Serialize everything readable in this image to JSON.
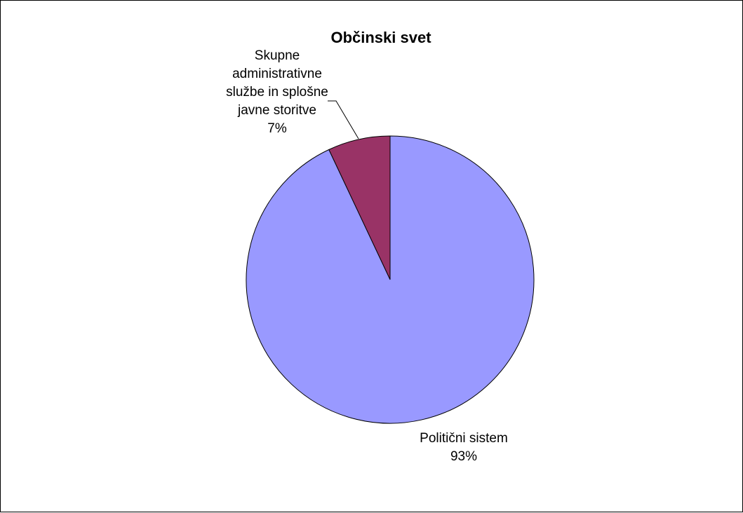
{
  "chart_data": {
    "type": "pie",
    "title": "Občinski svet",
    "slices": [
      {
        "label": "Skupne administrativne službe in splošne javne storitve",
        "label_lines": [
          "Skupne",
          "administrativne",
          "službe in splošne",
          "javne storitve"
        ],
        "percent_label": "7%",
        "value": 7,
        "color": "#993366"
      },
      {
        "label": "Politični sistem",
        "label_lines": [
          "Politični sistem"
        ],
        "percent_label": "93%",
        "value": 93,
        "color": "#9999FF"
      }
    ],
    "legend": "none",
    "start": "12 o'clock, counter-clockwise"
  }
}
